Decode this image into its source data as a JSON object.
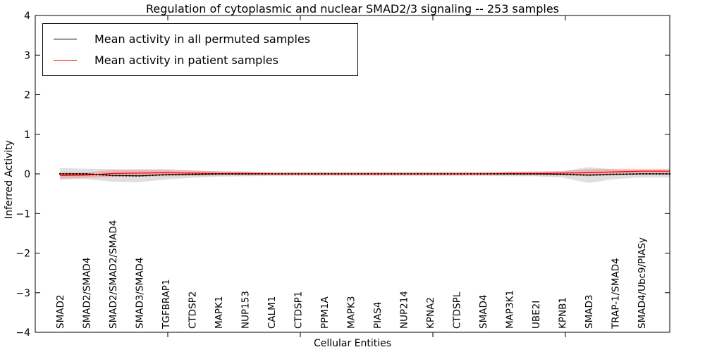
{
  "chart_data": {
    "type": "line",
    "title": "Regulation of cytoplasmic and nuclear SMAD2/3 signaling -- 253 samples",
    "xlabel": "Cellular Entities",
    "ylabel": "Inferred Activity",
    "ylim": [
      -4,
      4
    ],
    "yticks": [
      -4,
      -3,
      -2,
      -1,
      0,
      1,
      2,
      3,
      4
    ],
    "grid": false,
    "legend_position": "upper left",
    "categories": [
      "SMAD2",
      "SMAD2/SMAD4",
      "SMAD2/SMAD2/SMAD4",
      "SMAD3/SMAD4",
      "TGFBRAP1",
      "CTDSP2",
      "MAPK1",
      "NUP153",
      "CALM1",
      "CTDSP1",
      "PPM1A",
      "MAPK3",
      "PIAS4",
      "NUP214",
      "KPNA2",
      "CTDSPL",
      "SMAD4",
      "MAP3K1",
      "UBE2I",
      "KPNB1",
      "SMAD3",
      "TRAP-1/SMAD4",
      "SMAD4/Ubc9/PIASy"
    ],
    "series": [
      {
        "name": "Mean activity in all permuted samples",
        "color": "#000000",
        "band_color": "#aaaaaa",
        "values": [
          0,
          0,
          -0.04,
          -0.05,
          -0.02,
          -0.01,
          0,
          0,
          0,
          0,
          0,
          0,
          0,
          0,
          0,
          0,
          0,
          0,
          0,
          -0.01,
          -0.03,
          -0.01,
          0
        ],
        "band": [
          0.15,
          0.13,
          0.16,
          0.16,
          0.12,
          0.09,
          0.07,
          0.06,
          0.05,
          0.05,
          0.05,
          0.05,
          0.05,
          0.05,
          0.05,
          0.05,
          0.05,
          0.06,
          0.06,
          0.08,
          0.2,
          0.12,
          0.09
        ]
      },
      {
        "name": "Mean activity in patient samples",
        "color": "#ff0000",
        "band_color": "#ff6060",
        "values": [
          -0.04,
          -0.03,
          0.01,
          0.02,
          0.03,
          0.02,
          0.01,
          0.01,
          0,
          0,
          0,
          0,
          0,
          0,
          0,
          0,
          0,
          0.01,
          0.01,
          0.02,
          0.03,
          0.05,
          0.07
        ],
        "band": [
          0.08,
          0.07,
          0.09,
          0.09,
          0.09,
          0.07,
          0.05,
          0.05,
          0.04,
          0.04,
          0.04,
          0.04,
          0.04,
          0.04,
          0.04,
          0.04,
          0.04,
          0.04,
          0.05,
          0.05,
          0.09,
          0.08,
          0.06
        ]
      }
    ],
    "n_point_markers": 185,
    "axis_color": "#000000",
    "background_color": "#ffffff"
  }
}
